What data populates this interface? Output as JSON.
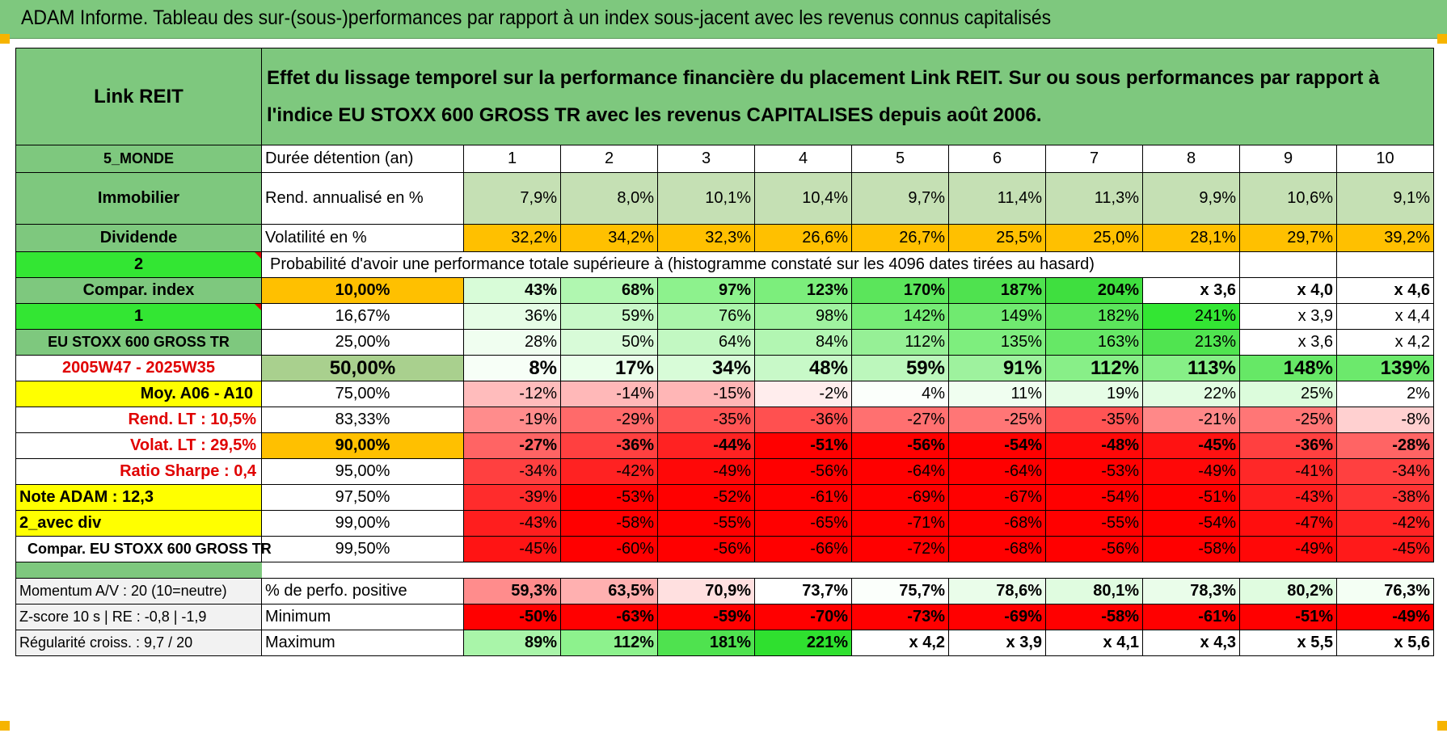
{
  "title": "ADAM Informe. Tableau des sur-(sous-)performances par rapport à un index sous-jacent avec les revenus connus capitalisés",
  "header": {
    "name": "Link REIT",
    "description": "Effet du lissage temporel sur la performance financière du placement Link REIT. Sur ou sous performances par rapport à l'indice EU STOXX 600 GROSS TR avec les revenus CAPITALISES depuis août 2006."
  },
  "left": {
    "zone": "5_MONDE",
    "sector": "Immobilier",
    "type": "Dividende",
    "n2": "2",
    "compar_index": "Compar. index",
    "n1": "1",
    "index_name": "EU STOXX 600 GROSS TR",
    "period": "2005W47 - 2025W35",
    "moy": "Moy. A06 - A10",
    "rend_lt": "Rend. LT :    10,5%",
    "volat_lt": "Volat. LT :    29,5%",
    "sharpe": "Ratio Sharpe :    0,4",
    "note": "Note ADAM : 12,3",
    "avec_div": "2_avec div",
    "compar_eu": "Compar. EU STOXX 600 GROSS TR",
    "momentum": "Momentum A/V : 20 (10=neutre)",
    "zscore": "Z-score 10 s | RE : -0,8 | -1,9",
    "regularite": "Régularité croiss. : 9,7 / 20"
  },
  "labels": {
    "duree": "Durée détention (an)",
    "rend": "Rend. annualisé en %",
    "volat": "Volatilité en %",
    "proba": "Probabilité d'avoir une performance totale supérieure à (histogramme constaté sur les 4096 dates tirées au hasard)",
    "pos": "% de perfo. positive",
    "min": "Minimum",
    "max": "Maximum"
  },
  "years": [
    "1",
    "2",
    "3",
    "4",
    "5",
    "6",
    "7",
    "8",
    "9",
    "10"
  ],
  "rend": [
    "7,9%",
    "8,0%",
    "10,1%",
    "10,4%",
    "9,7%",
    "11,4%",
    "11,3%",
    "9,9%",
    "10,6%",
    "9,1%"
  ],
  "volat": [
    "32,2%",
    "34,2%",
    "32,3%",
    "26,6%",
    "26,7%",
    "25,5%",
    "25,0%",
    "28,1%",
    "29,7%",
    "39,2%"
  ],
  "prob_rows": [
    {
      "p": "10,00%",
      "v": [
        "43%",
        "68%",
        "97%",
        "123%",
        "170%",
        "187%",
        "204%",
        "x 3,6",
        "x 4,0",
        "x 4,6"
      ]
    },
    {
      "p": "16,67%",
      "v": [
        "36%",
        "59%",
        "76%",
        "98%",
        "142%",
        "149%",
        "182%",
        "241%",
        "x 3,9",
        "x 4,4"
      ]
    },
    {
      "p": "25,00%",
      "v": [
        "28%",
        "50%",
        "64%",
        "84%",
        "112%",
        "135%",
        "163%",
        "213%",
        "x 3,6",
        "x 4,2"
      ]
    },
    {
      "p": "50,00%",
      "v": [
        "8%",
        "17%",
        "34%",
        "48%",
        "59%",
        "91%",
        "112%",
        "113%",
        "148%",
        "139%"
      ]
    },
    {
      "p": "75,00%",
      "v": [
        "-12%",
        "-14%",
        "-15%",
        "-2%",
        "4%",
        "11%",
        "19%",
        "22%",
        "25%",
        "2%"
      ]
    },
    {
      "p": "83,33%",
      "v": [
        "-19%",
        "-29%",
        "-35%",
        "-36%",
        "-27%",
        "-25%",
        "-35%",
        "-21%",
        "-25%",
        "-8%"
      ]
    },
    {
      "p": "90,00%",
      "v": [
        "-27%",
        "-36%",
        "-44%",
        "-51%",
        "-56%",
        "-54%",
        "-48%",
        "-45%",
        "-36%",
        "-28%"
      ]
    },
    {
      "p": "95,00%",
      "v": [
        "-34%",
        "-42%",
        "-49%",
        "-56%",
        "-64%",
        "-64%",
        "-53%",
        "-49%",
        "-41%",
        "-34%"
      ]
    },
    {
      "p": "97,50%",
      "v": [
        "-39%",
        "-53%",
        "-52%",
        "-61%",
        "-69%",
        "-67%",
        "-54%",
        "-51%",
        "-43%",
        "-38%"
      ]
    },
    {
      "p": "99,00%",
      "v": [
        "-43%",
        "-58%",
        "-55%",
        "-65%",
        "-71%",
        "-68%",
        "-55%",
        "-54%",
        "-47%",
        "-42%"
      ]
    },
    {
      "p": "99,50%",
      "v": [
        "-45%",
        "-60%",
        "-56%",
        "-66%",
        "-72%",
        "-68%",
        "-56%",
        "-58%",
        "-49%",
        "-45%"
      ]
    }
  ],
  "pos": [
    "59,3%",
    "63,5%",
    "70,9%",
    "73,7%",
    "75,7%",
    "78,6%",
    "80,1%",
    "78,3%",
    "80,2%",
    "76,3%"
  ],
  "min": [
    "-50%",
    "-63%",
    "-59%",
    "-70%",
    "-73%",
    "-69%",
    "-58%",
    "-61%",
    "-51%",
    "-49%"
  ],
  "max": [
    "89%",
    "112%",
    "181%",
    "221%",
    "x 4,2",
    "x 3,9",
    "x 4,1",
    "x 4,3",
    "x 5,5",
    "x 5,6"
  ],
  "colors": {
    "header_green": "#7ec87e",
    "lime": "#33e633",
    "orange": "#ffc000",
    "yellow": "#ffff00",
    "red_text": "#e00000",
    "rend_row": [
      "#c5e0b4",
      "#c5e0b4",
      "#c5e0b4",
      "#c5e0b4",
      "#c5e0b4",
      "#c5e0b4",
      "#c5e0b4",
      "#c5e0b4",
      "#c5e0b4",
      "#c5e0b4"
    ],
    "prob_rows": [
      [
        "#d8fcd8",
        "#b0f7b0",
        "#8df28d",
        "#7cee7c",
        "#5be55b",
        "#4fe24f",
        "#3fdf3f",
        "#ffffff",
        "#ffffff",
        "#ffffff"
      ],
      [
        "#e6fde6",
        "#c8f9c8",
        "#aaf5aa",
        "#9ff39f",
        "#76ec76",
        "#70ea70",
        "#5be55b",
        "#33e633",
        "#ffffff",
        "#ffffff"
      ],
      [
        "#f0fef0",
        "#d8fbd8",
        "#c2f8c2",
        "#b2f6b2",
        "#96f096",
        "#7eee7e",
        "#66e866",
        "#50e450",
        "#ffffff",
        "#ffffff"
      ],
      [
        "#f7fff7",
        "#eaffea",
        "#d8fcd8",
        "#c8f9c8",
        "#bcf7bc",
        "#9ef29e",
        "#88ef88",
        "#87ef87",
        "#66e866",
        "#6ce96c"
      ],
      [
        "#ffbcbc",
        "#ffb8b8",
        "#ffb6b6",
        "#ffeded",
        "#fbfffb",
        "#f0fef0",
        "#e6fde6",
        "#e2fde2",
        "#dcfcdc",
        "#ffffff"
      ],
      [
        "#ff8c8c",
        "#ff6a6a",
        "#ff5454",
        "#ff5050",
        "#ff7070",
        "#ff7676",
        "#ff5454",
        "#ff8888",
        "#ff7676",
        "#ffd0d0"
      ],
      [
        "#ff6464",
        "#ff4040",
        "#ff2222",
        "#ff0000",
        "#ff0000",
        "#ff0000",
        "#ff0808",
        "#ff1212",
        "#ff4040",
        "#ff6464"
      ],
      [
        "#ff4040",
        "#ff2222",
        "#ff0808",
        "#ff0000",
        "#ff0000",
        "#ff0000",
        "#ff0000",
        "#ff0808",
        "#ff2828",
        "#ff4040"
      ],
      [
        "#ff2c2c",
        "#ff0000",
        "#ff0000",
        "#ff0000",
        "#ff0000",
        "#ff0000",
        "#ff0000",
        "#ff0000",
        "#ff1e1e",
        "#ff3434"
      ],
      [
        "#ff1e1e",
        "#ff0000",
        "#ff0000",
        "#ff0000",
        "#ff0000",
        "#ff0000",
        "#ff0000",
        "#ff0000",
        "#ff0e0e",
        "#ff2424"
      ],
      [
        "#ff1414",
        "#ff0000",
        "#ff0000",
        "#ff0000",
        "#ff0000",
        "#ff0000",
        "#ff0000",
        "#ff0000",
        "#ff0808",
        "#ff1a1a"
      ]
    ],
    "pos_row": [
      "#ff8c8c",
      "#ffb0b0",
      "#ffe0e0",
      "#ffffff",
      "#fbfffb",
      "#eafdea",
      "#e0fce0",
      "#eafdea",
      "#e0fce0",
      "#f4fff4"
    ],
    "min_row": [
      "#ff0000",
      "#ff0000",
      "#ff0000",
      "#ff0000",
      "#ff0000",
      "#ff0000",
      "#ff0000",
      "#ff0000",
      "#ff0000",
      "#ff0000"
    ],
    "max_row": [
      "#a9f5a9",
      "#8df28d",
      "#4fe24f",
      "#2fe02f",
      "#ffffff",
      "#ffffff",
      "#ffffff",
      "#ffffff",
      "#ffffff",
      "#ffffff"
    ]
  }
}
